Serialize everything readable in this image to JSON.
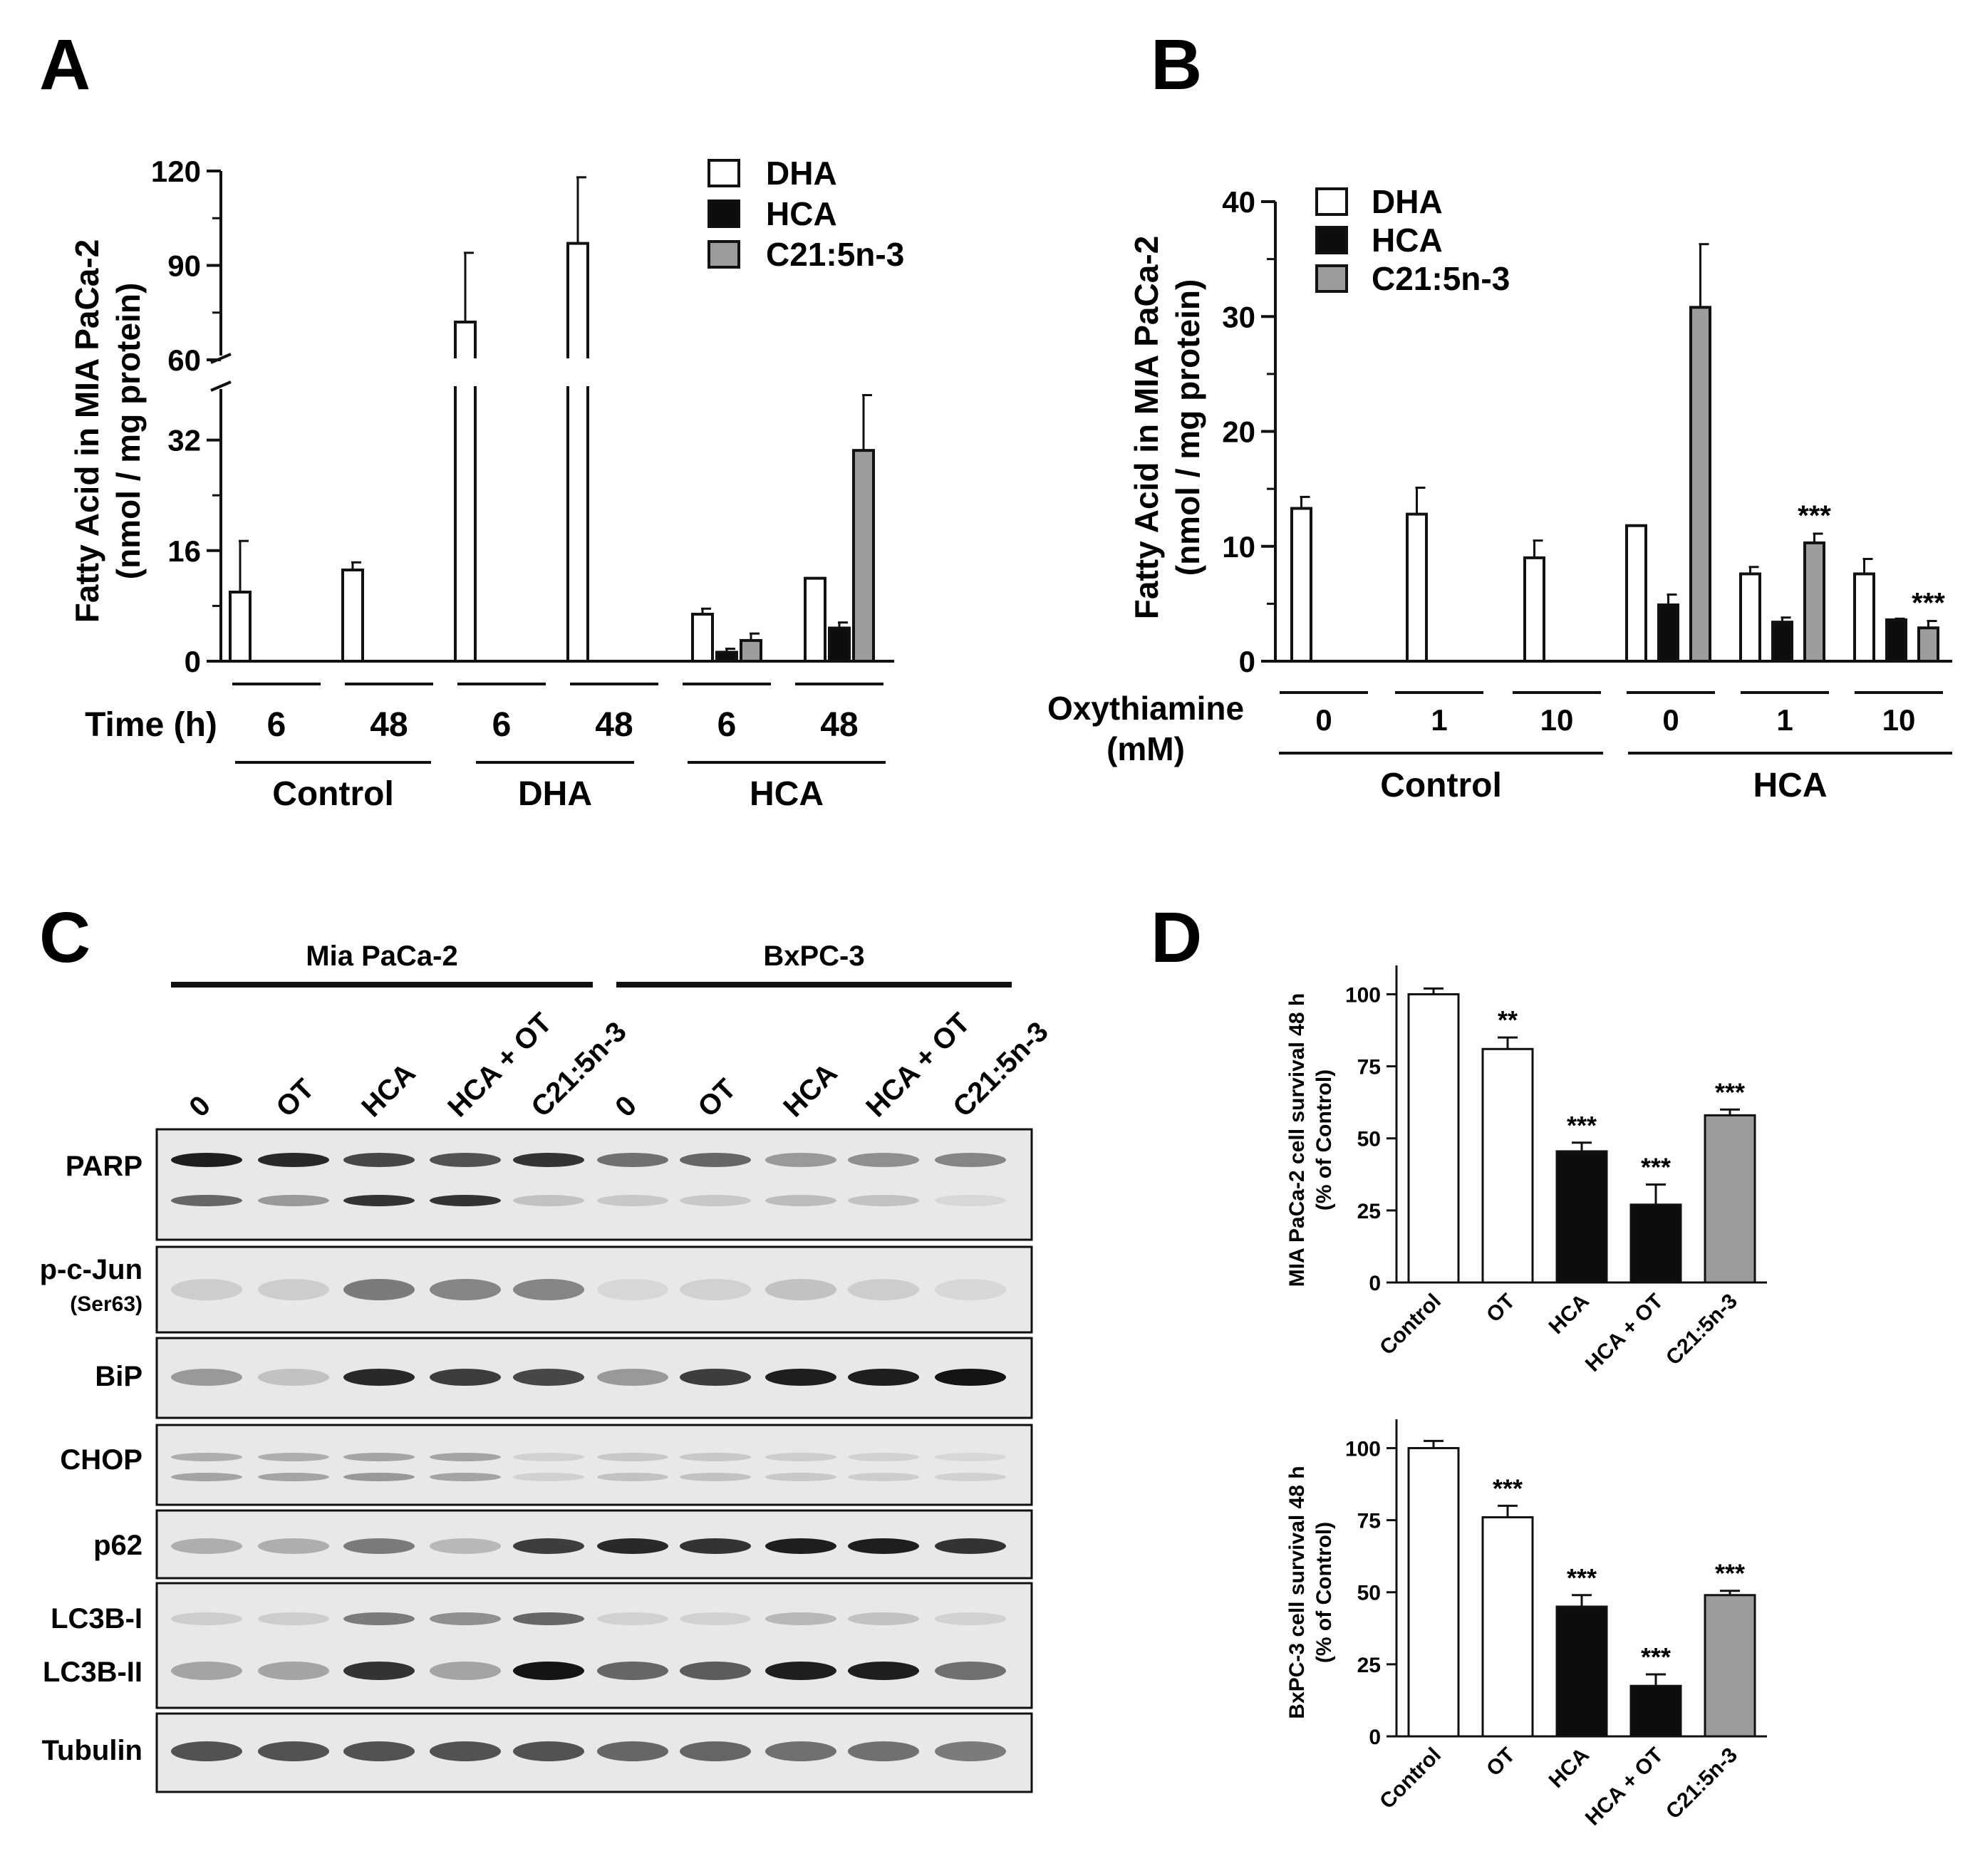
{
  "colors": {
    "white_bar": "#ffffff",
    "black_bar": "#0d0d0d",
    "gray_bar": "#9c9c9c",
    "axis": "#111111",
    "blot_bg": "#e8e8e8"
  },
  "panelA": {
    "letter": "A",
    "ylabel_line1": "Fatty Acid in MIA PaCa-2",
    "ylabel_line2": "(nmol / mg protein)",
    "legend": [
      "DHA",
      "HCA",
      "C21:5n-3"
    ],
    "time_label": "Time (h)",
    "upper_ticks": [
      "60",
      "90",
      "120"
    ],
    "lower_ticks": [
      "0",
      "16",
      "32"
    ],
    "group_labels": [
      "Control",
      "DHA",
      "HCA"
    ],
    "chart_data": {
      "type": "bar",
      "categories": [
        "Control 6",
        "Control 48",
        "DHA 6",
        "DHA 48",
        "HCA 6",
        "HCA 48"
      ],
      "x_tick_labels": [
        "6",
        "48",
        "6",
        "48",
        "6",
        "48"
      ],
      "ylim": [
        0,
        120
      ],
      "axis_break": [
        40,
        60
      ],
      "series": [
        {
          "name": "DHA",
          "values": [
            10,
            13.2,
            72,
            97,
            6.8,
            12
          ],
          "errors": [
            7.4,
            1.1,
            22,
            21,
            0.8,
            0
          ]
        },
        {
          "name": "HCA",
          "values": [
            null,
            null,
            null,
            null,
            1.3,
            4.8
          ],
          "errors": [
            null,
            null,
            null,
            null,
            0.5,
            0.8
          ]
        },
        {
          "name": "C21:5n-3",
          "values": [
            null,
            null,
            null,
            null,
            3,
            30.5
          ],
          "errors": [
            null,
            null,
            null,
            null,
            1,
            8
          ]
        }
      ]
    }
  },
  "panelB": {
    "letter": "B",
    "ylabel_line1": "Fatty Acid in MIA PaCa-2",
    "ylabel_line2": "(nmol / mg protein)",
    "legend": [
      "DHA",
      "HCA",
      "C21:5n-3"
    ],
    "ot_label_line1": "Oxythiamine",
    "ot_label_line2": "(mM)",
    "group_labels": [
      "Control",
      "HCA"
    ],
    "yticks": [
      "0",
      "10",
      "20",
      "30",
      "40"
    ],
    "chart_data": {
      "type": "bar",
      "categories": [
        "Control 0",
        "Control 1",
        "Control 10",
        "HCA 0",
        "HCA 1",
        "HCA 10"
      ],
      "x_tick_labels": [
        "0",
        "1",
        "10",
        "0",
        "1",
        "10"
      ],
      "ylim": [
        0,
        40
      ],
      "series": [
        {
          "name": "DHA",
          "values": [
            13.3,
            12.8,
            9,
            11.8,
            7.6,
            7.6
          ],
          "errors": [
            1,
            2.3,
            1.5,
            0,
            0.6,
            1.3
          ]
        },
        {
          "name": "HCA",
          "values": [
            null,
            null,
            null,
            4.9,
            3.4,
            3.6
          ],
          "errors": [
            null,
            null,
            null,
            0.9,
            0.4,
            0.1
          ]
        },
        {
          "name": "C21:5n-3",
          "values": [
            null,
            null,
            null,
            30.8,
            10.3,
            2.9
          ],
          "errors": [
            null,
            null,
            null,
            5.5,
            0.8,
            0.6
          ]
        }
      ],
      "annotations": [
        {
          "category": "HCA 1",
          "series": "C21:5n-3",
          "text": "***"
        },
        {
          "category": "HCA 10",
          "series": "C21:5n-3",
          "text": "***"
        }
      ]
    }
  },
  "panelC": {
    "letter": "C",
    "cell_lines": [
      "Mia PaCa-2",
      "BxPC-3"
    ],
    "lanes": [
      "0",
      "OT",
      "HCA",
      "HCA + OT",
      "C21:5n-3",
      "0",
      "OT",
      "HCA",
      "HCA + OT",
      "C21:5n-3"
    ],
    "row_labels": [
      "PARP",
      "p-c-Jun",
      "(Ser63)",
      "BiP",
      "CHOP",
      "p62",
      "LC3B-I",
      "LC3B-II",
      "Tubulin"
    ],
    "band_intensity": {
      "PARP_upper": [
        0.95,
        0.9,
        0.75,
        0.7,
        0.85,
        0.55,
        0.6,
        0.35,
        0.4,
        0.45
      ],
      "PARP_lower": [
        0.6,
        0.35,
        0.85,
        0.85,
        0.15,
        0.12,
        0.12,
        0.18,
        0.15,
        0.05
      ],
      "pcJun": [
        0.1,
        0.1,
        0.5,
        0.45,
        0.45,
        0.05,
        0.08,
        0.15,
        0.1,
        0.05
      ],
      "BiP": [
        0.35,
        0.15,
        0.9,
        0.8,
        0.75,
        0.35,
        0.8,
        0.95,
        0.95,
        1.0
      ],
      "CHOP_upper": [
        0.25,
        0.25,
        0.3,
        0.3,
        0.08,
        0.12,
        0.12,
        0.1,
        0.08,
        0.05
      ],
      "CHOP_lower": [
        0.3,
        0.3,
        0.35,
        0.3,
        0.08,
        0.15,
        0.15,
        0.12,
        0.1,
        0.08
      ],
      "p62": [
        0.25,
        0.25,
        0.5,
        0.2,
        0.8,
        0.9,
        0.85,
        0.95,
        0.95,
        0.85
      ],
      "LC3BI": [
        0.1,
        0.1,
        0.5,
        0.4,
        0.6,
        0.08,
        0.08,
        0.2,
        0.15,
        0.08
      ],
      "LC3BII": [
        0.3,
        0.3,
        0.85,
        0.3,
        1.0,
        0.6,
        0.65,
        0.95,
        0.95,
        0.55
      ],
      "Tubulin": [
        0.7,
        0.7,
        0.7,
        0.7,
        0.7,
        0.6,
        0.6,
        0.55,
        0.55,
        0.5
      ]
    }
  },
  "panelD": {
    "letter": "D",
    "top": {
      "ylabel_line1": "MIA PaCa-2 cell survival 48 h",
      "ylabel_line2": "(% of Control)",
      "yticks": [
        "0",
        "25",
        "50",
        "75",
        "100"
      ],
      "chart_data": {
        "type": "bar",
        "categories": [
          "Control",
          "OT",
          "HCA",
          "HCA + OT",
          "C21:5n-3"
        ],
        "values": [
          100,
          81,
          45.5,
          27,
          58
        ],
        "errors": [
          2,
          4,
          3,
          7,
          2
        ],
        "bar_colors": [
          "white",
          "white",
          "black",
          "black",
          "gray"
        ],
        "ylim": [
          0,
          110
        ],
        "significance": [
          "",
          "**",
          "***",
          "***",
          "***"
        ]
      }
    },
    "bottom": {
      "ylabel_line1": "BxPC-3 cell survival 48 h",
      "ylabel_line2": "(% of Control)",
      "yticks": [
        "0",
        "25",
        "50",
        "75",
        "100"
      ],
      "chart_data": {
        "type": "bar",
        "categories": [
          "Control",
          "OT",
          "HCA",
          "HCA + OT",
          "C21:5n-3"
        ],
        "values": [
          100,
          76,
          45,
          17.5,
          49
        ],
        "errors": [
          2.5,
          4,
          4,
          4,
          1.5
        ],
        "bar_colors": [
          "white",
          "white",
          "black",
          "black",
          "gray"
        ],
        "ylim": [
          0,
          110
        ],
        "significance": [
          "",
          "***",
          "***",
          "***",
          "***"
        ]
      }
    }
  }
}
